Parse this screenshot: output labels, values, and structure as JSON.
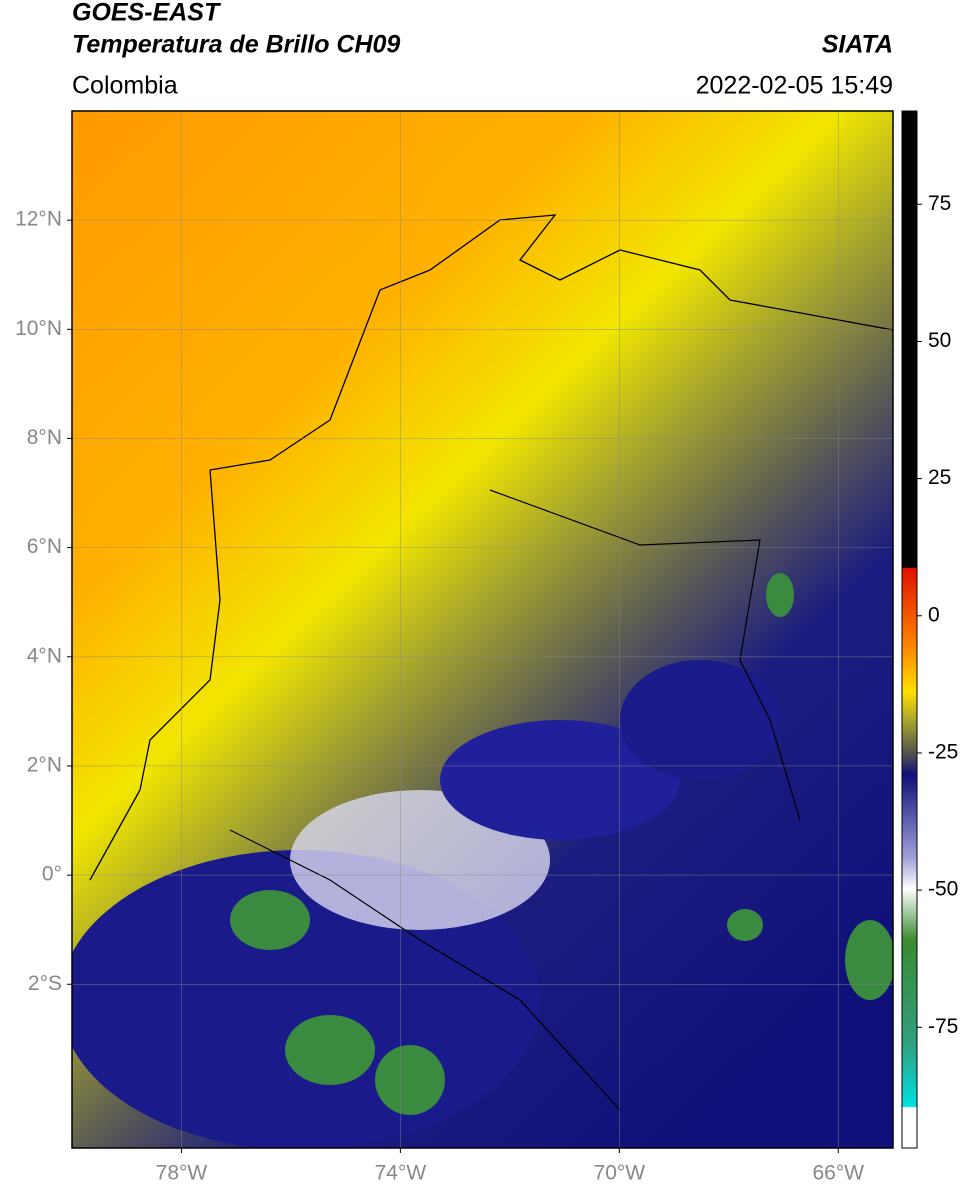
{
  "header": {
    "satellite": "GOES-EAST",
    "product": "Temperatura de Brillo CH09",
    "source": "SIATA",
    "region": "Colombia",
    "datetime": "2022-02-05 15:49"
  },
  "map": {
    "xlim": [
      -80,
      -65
    ],
    "ylim": [
      -5,
      14
    ],
    "grid": true,
    "xticks": [
      {
        "value": -78,
        "label": "78°W"
      },
      {
        "value": -74,
        "label": "74°W"
      },
      {
        "value": -70,
        "label": "70°W"
      },
      {
        "value": -66,
        "label": "66°W"
      }
    ],
    "yticks": [
      {
        "value": 12,
        "label": "12°N"
      },
      {
        "value": 10,
        "label": "10°N"
      },
      {
        "value": 8,
        "label": "8°N"
      },
      {
        "value": 6,
        "label": "6°N"
      },
      {
        "value": 4,
        "label": "4°N"
      },
      {
        "value": 2,
        "label": "2°N"
      },
      {
        "value": 0,
        "label": "0°"
      },
      {
        "value": -2,
        "label": "2°S"
      }
    ]
  },
  "colorbar": {
    "lim": [
      -97,
      92
    ],
    "ticks": [
      75,
      50,
      25,
      0,
      -25,
      -50,
      -75
    ]
  }
}
